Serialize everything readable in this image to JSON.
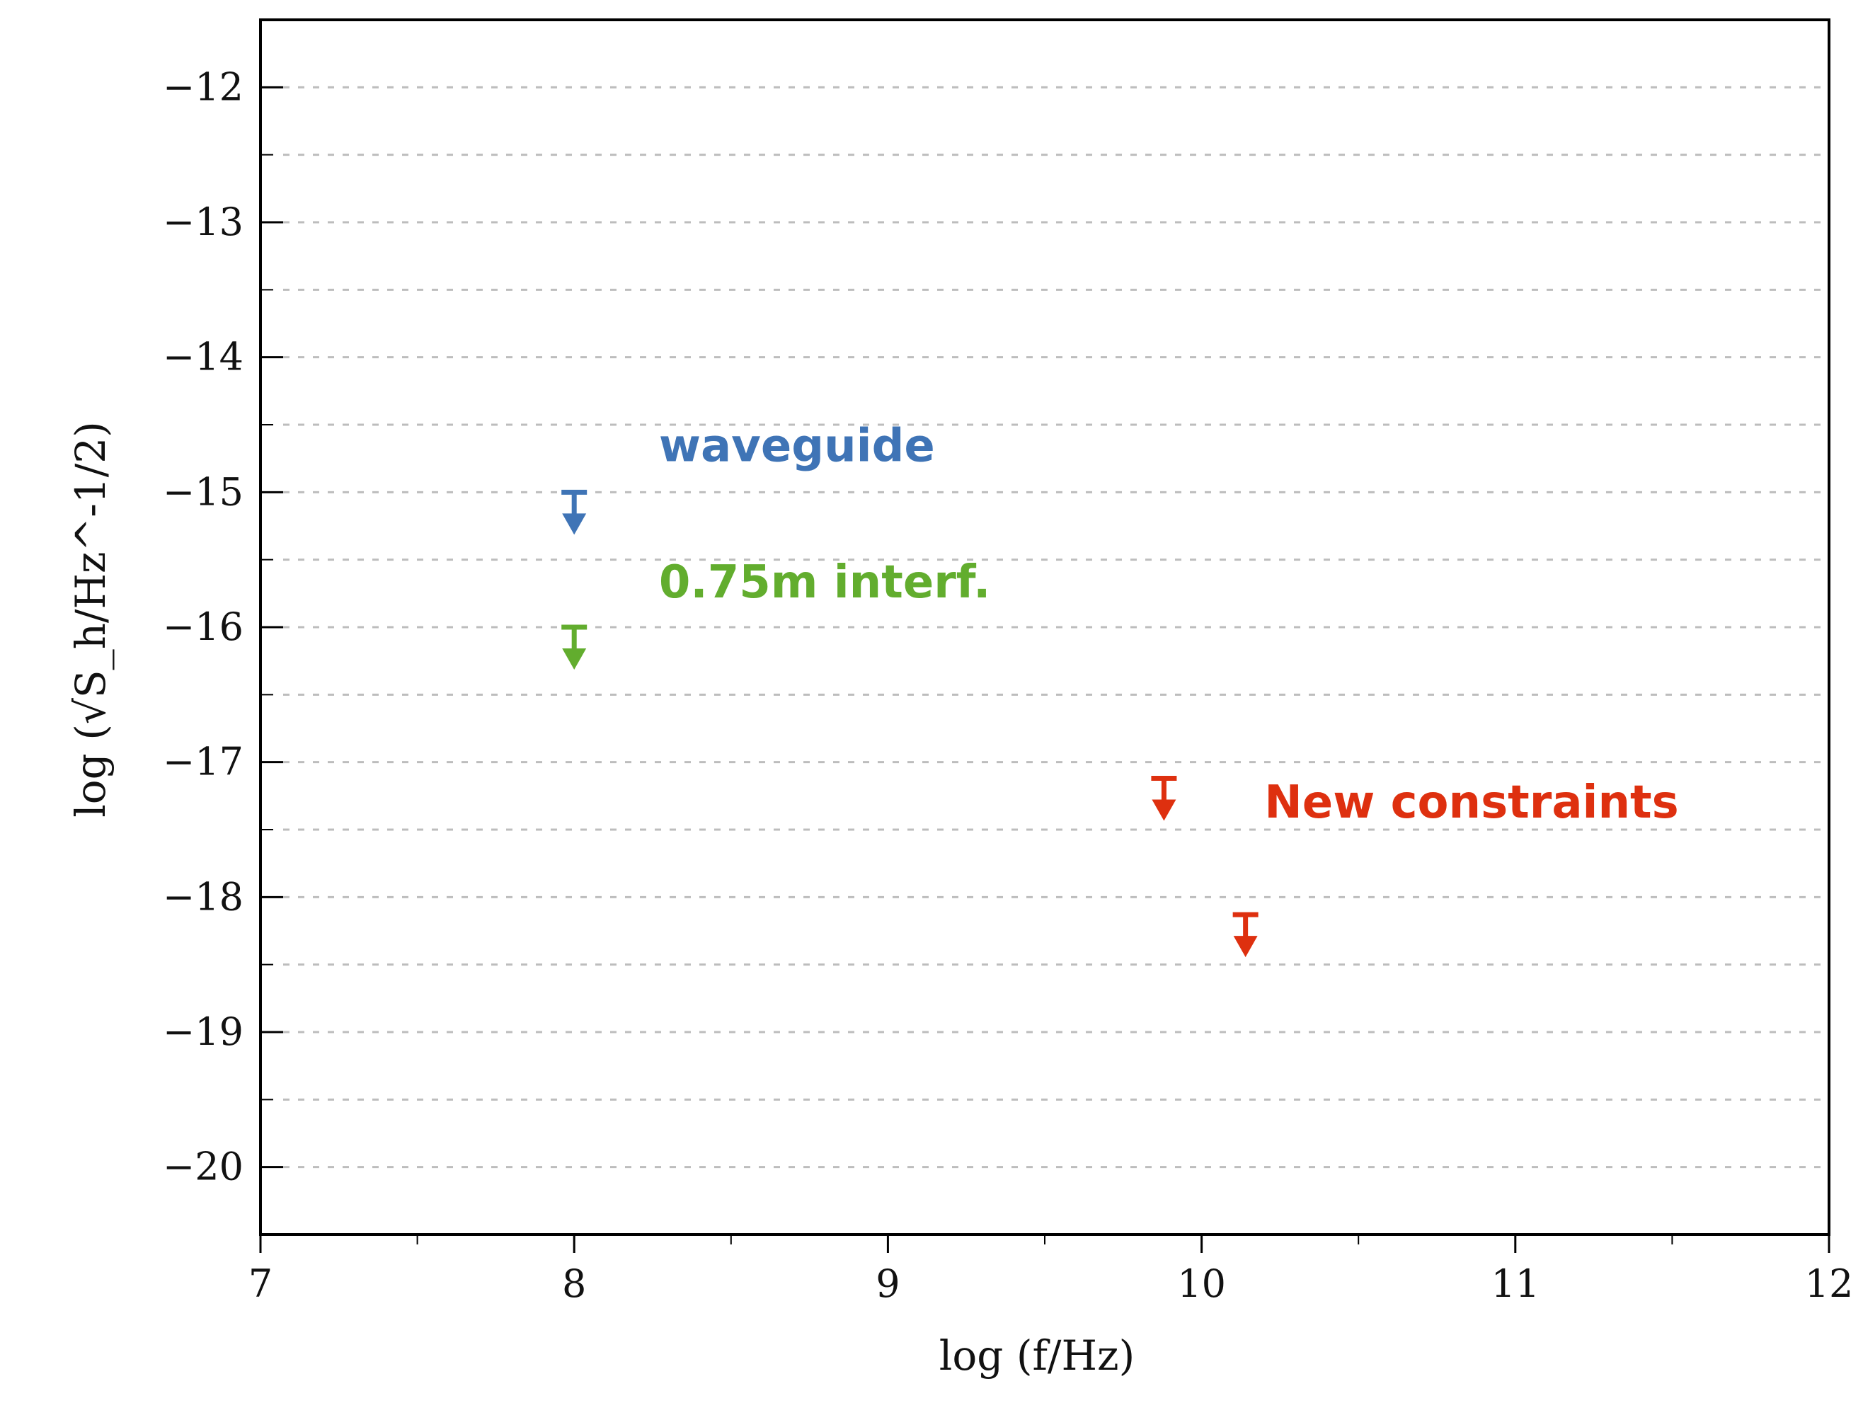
{
  "chart_data": {
    "type": "scatter",
    "title": "",
    "xlabel": "log (f/Hz)",
    "ylabel": "log (√S_h/Hz^-1/2)",
    "xlim": [
      7,
      12
    ],
    "ylim": [
      -20.5,
      -11.5
    ],
    "x_ticks": [
      7,
      8,
      9,
      10,
      11,
      12
    ],
    "x_tick_labels": [
      "7",
      "8",
      "9",
      "10",
      "11",
      "12"
    ],
    "y_ticks": [
      -12,
      -13,
      -14,
      -15,
      -16,
      -17,
      -18,
      -19,
      -20
    ],
    "y_tick_labels": [
      "−12",
      "−13",
      "−14",
      "−15",
      "−16",
      "−17",
      "−18",
      "−19",
      "−20"
    ],
    "grid": true,
    "marker": "upper-limit-arrow",
    "series": [
      {
        "name": "waveguide",
        "color": "#3f74b6",
        "x": [
          8.0
        ],
        "y": [
          -15.0
        ]
      },
      {
        "name": "0.75m interf.",
        "color": "#62ad2e",
        "x": [
          8.0
        ],
        "y": [
          -16.0
        ]
      },
      {
        "name": "New constraints",
        "color": "#de300f",
        "x": [
          9.88,
          10.14
        ],
        "y": [
          -17.12,
          -18.13
        ]
      }
    ]
  }
}
